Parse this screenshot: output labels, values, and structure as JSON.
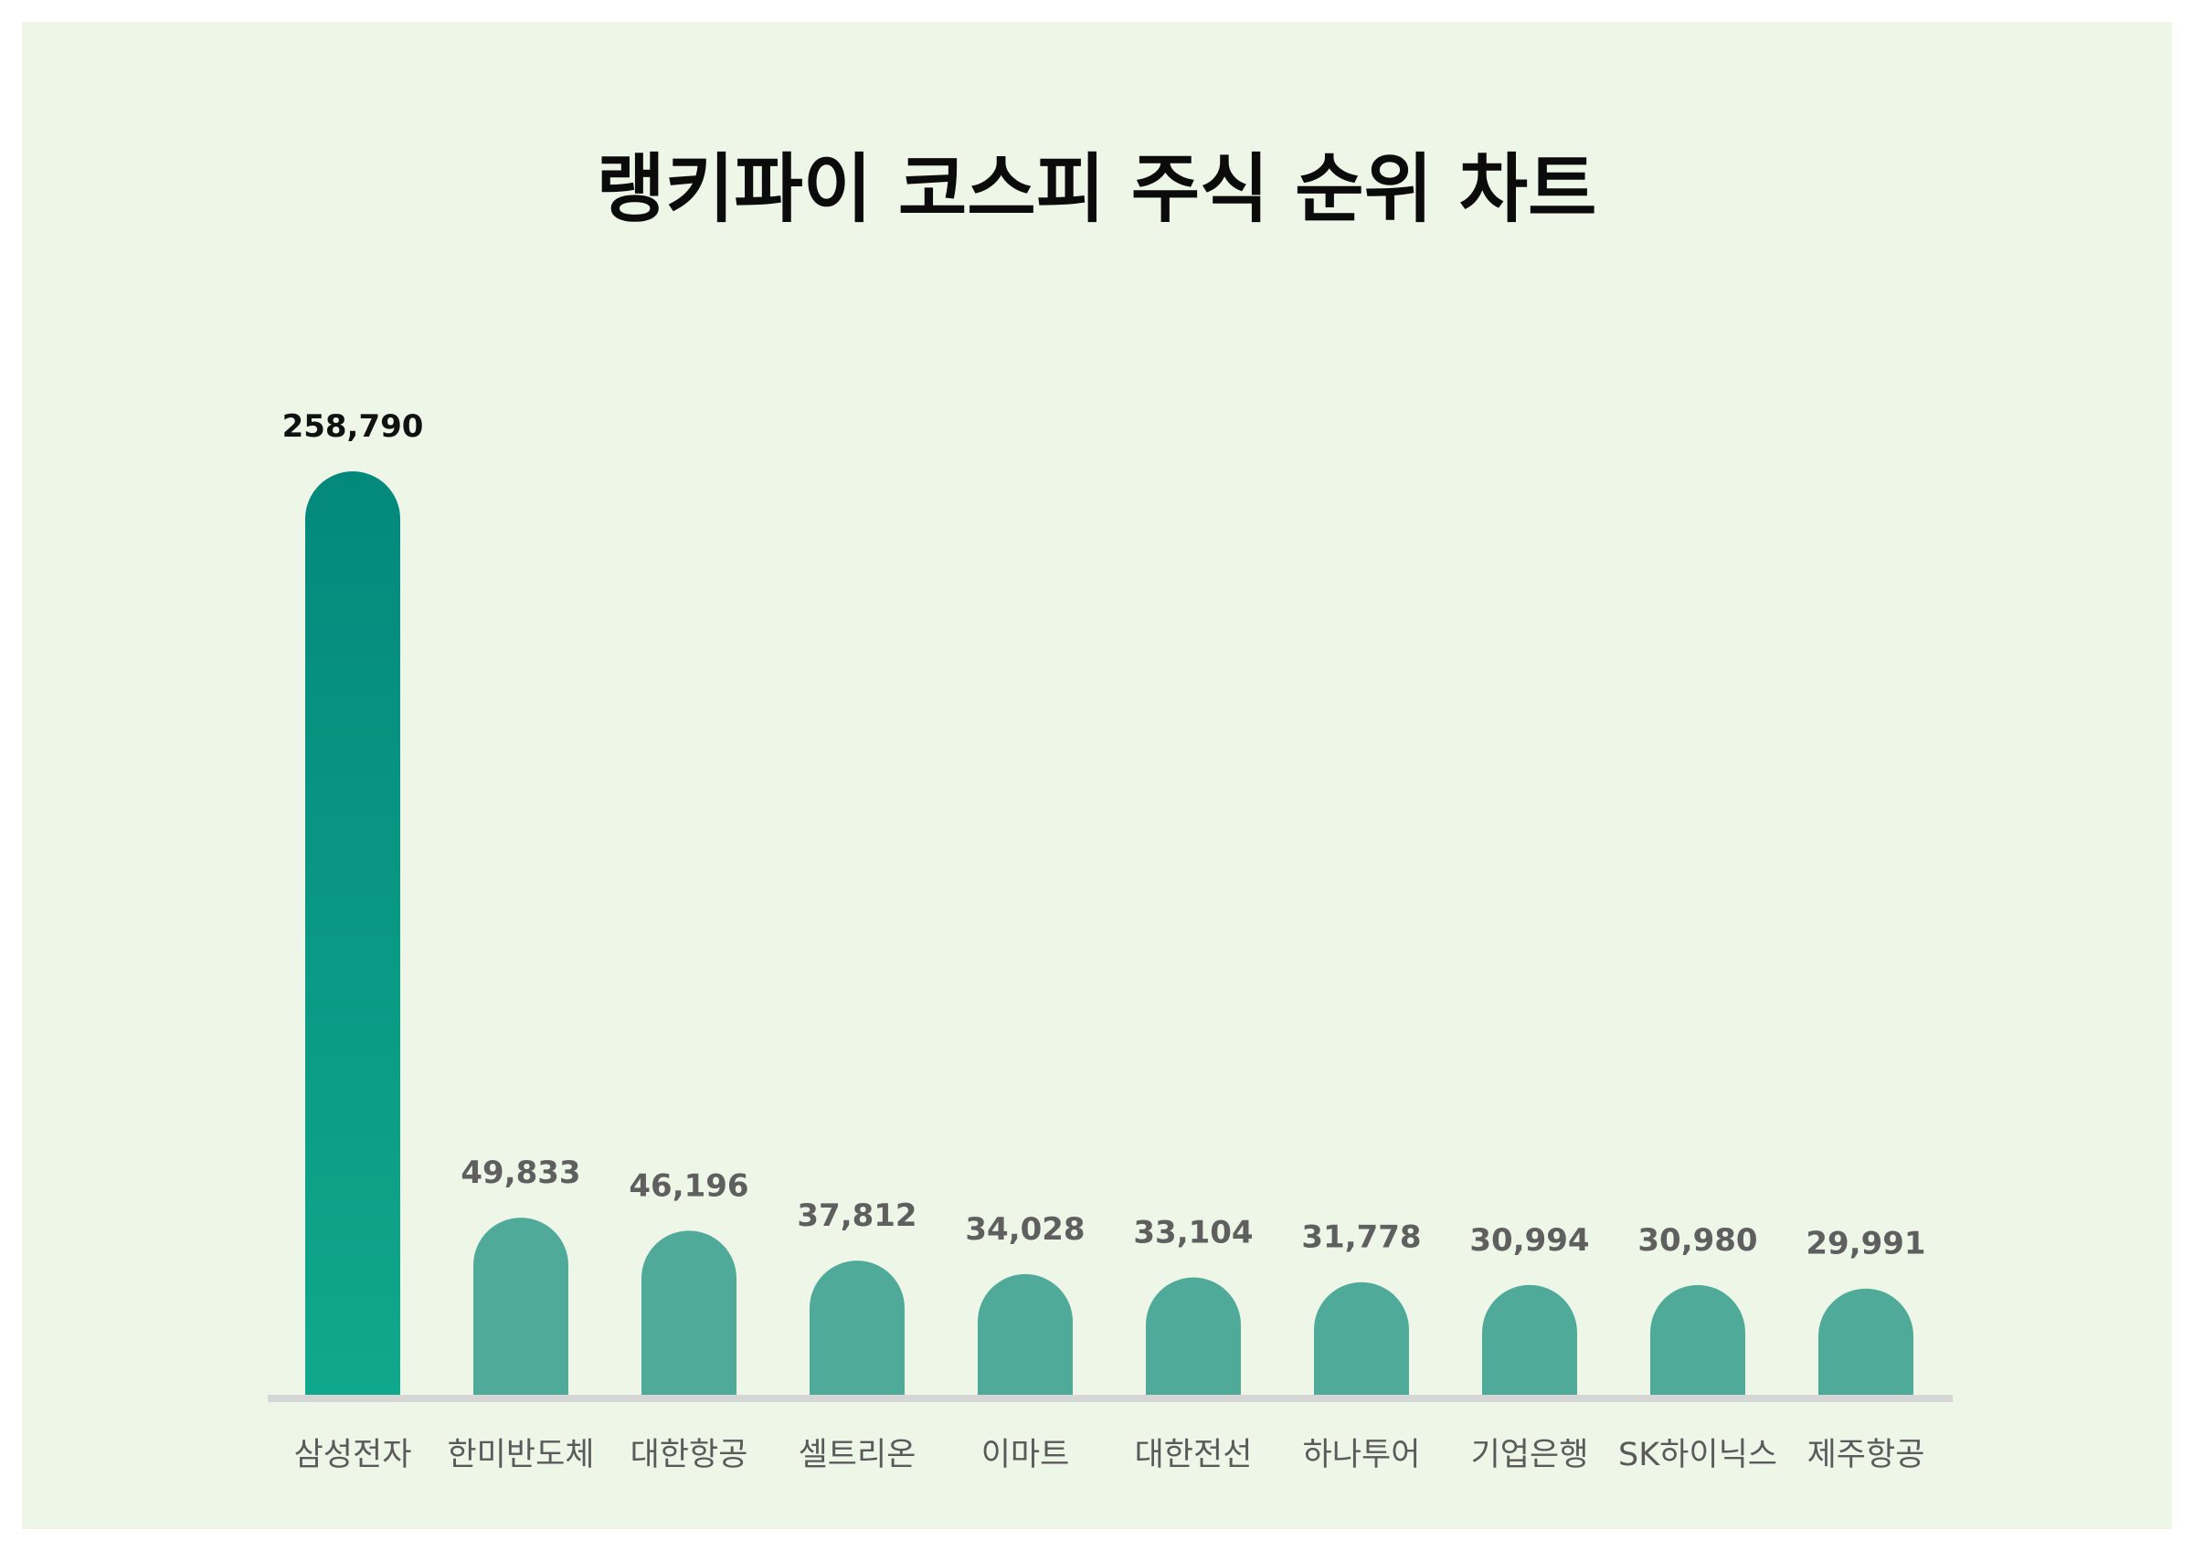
{
  "chart_data": {
    "type": "bar",
    "title": "랭키파이 코스피 주식 순위 차트",
    "categories": [
      "삼성전자",
      "한미반도체",
      "대한항공",
      "셀트리온",
      "이마트",
      "대한전선",
      "하나투어",
      "기업은행",
      "SK하이닉스",
      "제주항공"
    ],
    "values": [
      258790,
      49833,
      46196,
      37812,
      34028,
      33104,
      31778,
      30994,
      30980,
      29991
    ],
    "value_labels": [
      "258,790",
      "49,833",
      "46,196",
      "37,812",
      "34,028",
      "33,104",
      "31,778",
      "30,994",
      "30,980",
      "29,991"
    ],
    "xlabel": "",
    "ylabel": "",
    "ylim": [
      0,
      258790
    ],
    "grid": false,
    "legend": "none"
  },
  "colors": {
    "background": "#eef6e8",
    "top_bar_gradient_top": "#03897c",
    "top_bar_gradient_bottom": "#10a88c",
    "bar": "#50aa9a",
    "baseline": "#d6d6d6"
  }
}
